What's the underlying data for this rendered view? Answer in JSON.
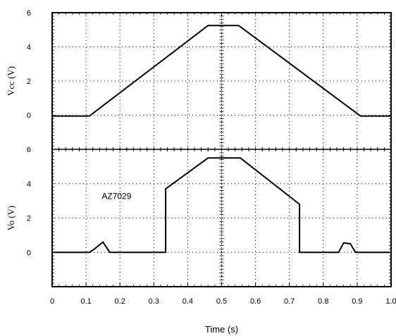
{
  "chart_data": {
    "type": "line",
    "xlabel": "Time (s)",
    "xlim": [
      0,
      1.0
    ],
    "xticks": [
      "0",
      "0.1",
      "0.2",
      "0.3",
      "0.4",
      "0.5",
      "0.6",
      "0.7",
      "0.8",
      "0.9",
      "1.0"
    ],
    "grid": true,
    "panels": [
      {
        "name": "vcc",
        "ylabel": "Vcc (V)",
        "ylim": [
          -2,
          6
        ],
        "yticks": [
          "0",
          "2",
          "4",
          "6"
        ],
        "series": [
          {
            "x": [
              0,
              0.11,
              0.46,
              0.55,
              0.91,
              1.0
            ],
            "y": [
              -0.05,
              -0.05,
              5.25,
              5.25,
              -0.05,
              -0.05
            ]
          }
        ]
      },
      {
        "name": "vo",
        "ylabel": "Vo (V)",
        "ylim": [
          -2,
          6
        ],
        "yticks": [
          "0",
          "2",
          "4",
          "6"
        ],
        "annotation": {
          "text": "AZ7029",
          "x": 0.19,
          "y": 3.1
        },
        "series": [
          {
            "x": [
              0,
              0.11,
              0.125,
              0.15,
              0.17,
              0.335,
              0.335,
              0.46,
              0.555,
              0.73,
              0.73,
              0.845,
              0.86,
              0.88,
              0.895,
              1.0
            ],
            "y": [
              0,
              0,
              0.2,
              0.6,
              0,
              0,
              3.7,
              5.5,
              5.5,
              2.8,
              0,
              0,
              0.55,
              0.5,
              0,
              0
            ]
          }
        ]
      }
    ]
  }
}
